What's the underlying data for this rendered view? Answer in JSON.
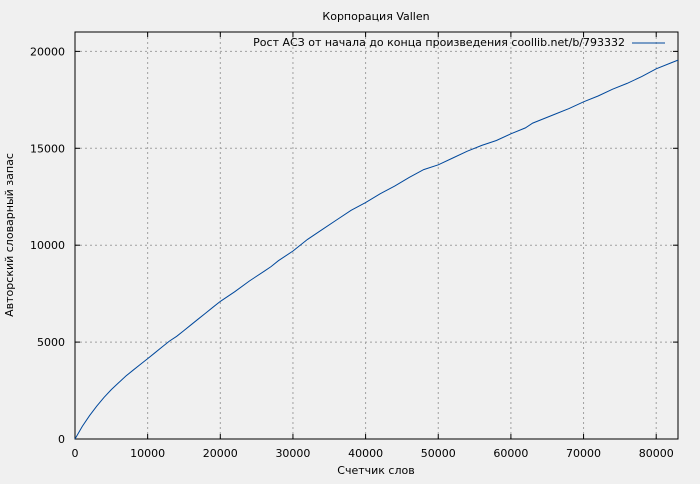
{
  "chart_data": {
    "type": "line",
    "title": "Корпорация Vallen",
    "xlabel": "Счетчик слов",
    "ylabel": "Авторский словарный запас",
    "xlim": [
      0,
      83000
    ],
    "ylim": [
      0,
      21000
    ],
    "grid": true,
    "legend_position": "top-right",
    "x_ticks": [
      0,
      10000,
      20000,
      30000,
      40000,
      50000,
      60000,
      70000,
      80000
    ],
    "y_ticks": [
      0,
      5000,
      10000,
      15000,
      20000
    ],
    "series": [
      {
        "name": "Рост АСЗ от начала до конца произведения coollib.net/b/793332",
        "color": "#00489c",
        "x": [
          0,
          1000,
          2000,
          3000,
          4000,
          5000,
          6000,
          7000,
          8000,
          9000,
          10000,
          11000,
          12000,
          13000,
          14000,
          15000,
          16000,
          17000,
          18000,
          19000,
          20000,
          22000,
          24000,
          26000,
          27000,
          28000,
          30000,
          32000,
          34000,
          36000,
          38000,
          40000,
          42000,
          44000,
          46000,
          48000,
          50000,
          52000,
          54000,
          56000,
          58000,
          60000,
          62000,
          63000,
          66000,
          68000,
          70000,
          72000,
          74000,
          76000,
          78000,
          80000,
          82000,
          83000
        ],
        "y": [
          0,
          650,
          1200,
          1700,
          2150,
          2550,
          2900,
          3250,
          3550,
          3850,
          4150,
          4450,
          4750,
          5050,
          5300,
          5600,
          5900,
          6200,
          6500,
          6800,
          7100,
          7600,
          8150,
          8650,
          8900,
          9200,
          9700,
          10300,
          10800,
          11300,
          11800,
          12200,
          12650,
          13050,
          13500,
          13900,
          14150,
          14500,
          14850,
          15150,
          15400,
          15750,
          16050,
          16300,
          16750,
          17050,
          17400,
          17700,
          18050,
          18350,
          18700,
          19100,
          19400,
          19550
        ]
      }
    ]
  }
}
